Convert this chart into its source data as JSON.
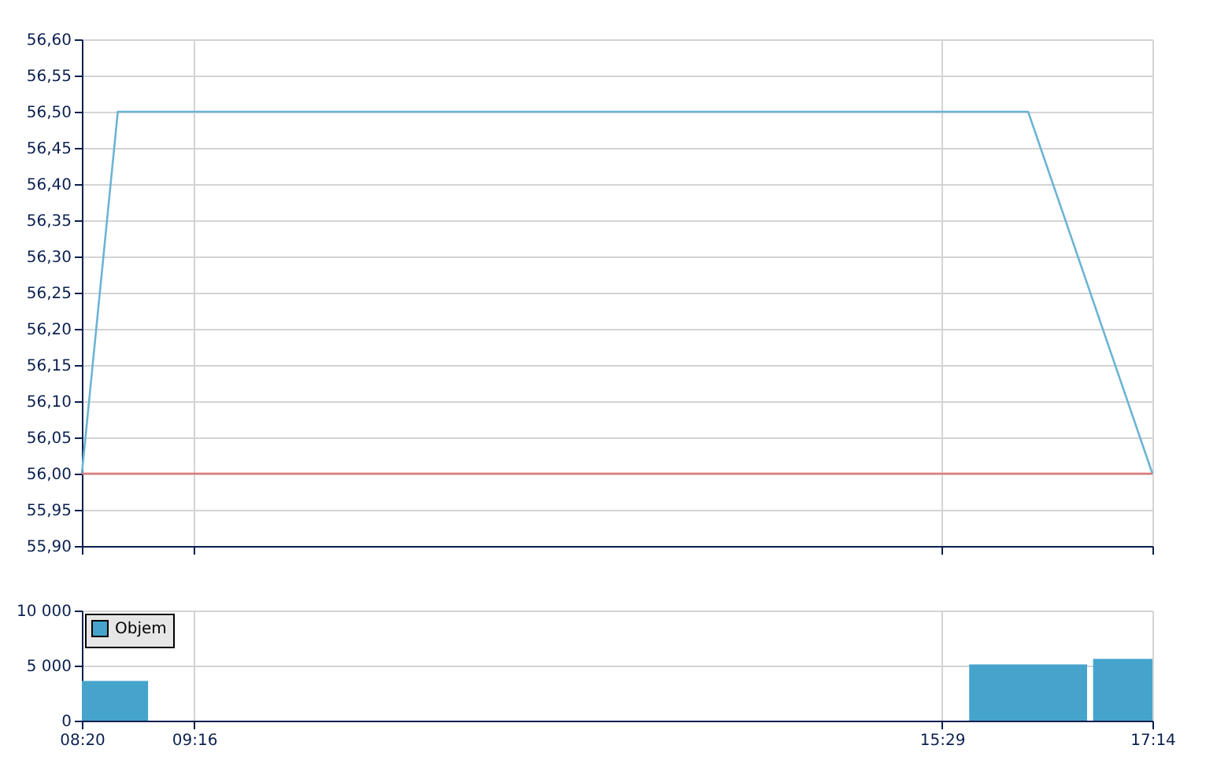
{
  "chart_data": [
    {
      "type": "line",
      "x": [
        8.3333,
        8.632,
        16.2,
        17.2333
      ],
      "series": [
        {
          "color": "#6cb4d4",
          "values": [
            56.0,
            56.5,
            56.5,
            56.0
          ]
        }
      ],
      "xlim": [
        8.3333,
        17.2333
      ],
      "xticks": [
        {
          "value": 8.3333,
          "label": null
        },
        {
          "value": 9.2667,
          "label": null
        },
        {
          "value": 15.4833,
          "label": null
        },
        {
          "value": 17.2333,
          "label": null
        }
      ],
      "ylim": [
        55.9,
        56.6
      ],
      "yticks": [
        {
          "value": 55.9,
          "label": "55,90"
        },
        {
          "value": 55.95,
          "label": "55,95"
        },
        {
          "value": 56.0,
          "label": "56,00"
        },
        {
          "value": 56.05,
          "label": "56,05"
        },
        {
          "value": 56.1,
          "label": "56,10"
        },
        {
          "value": 56.15,
          "label": "56,15"
        },
        {
          "value": 56.2,
          "label": "56,20"
        },
        {
          "value": 56.25,
          "label": "56,25"
        },
        {
          "value": 56.3,
          "label": "56,30"
        },
        {
          "value": 56.35,
          "label": "56,35"
        },
        {
          "value": 56.4,
          "label": "56,40"
        },
        {
          "value": 56.45,
          "label": "56,45"
        },
        {
          "value": 56.5,
          "label": "56,50"
        },
        {
          "value": 56.55,
          "label": "56,55"
        },
        {
          "value": 56.6,
          "label": "56,60"
        }
      ],
      "ref_lines": [
        {
          "axis": "y",
          "value": 56.0,
          "color": "#e07a7a"
        }
      ],
      "grid": true,
      "tick_labels": "y"
    },
    {
      "type": "histogram",
      "bins": [
        8.3333,
        8.884,
        15.71,
        16.69,
        16.74,
        17.2333
      ],
      "series": [
        {
          "name": "Objem",
          "color": "#46a4cc",
          "values": [
            3600,
            null,
            5100,
            null,
            5600
          ]
        }
      ],
      "xlim": [
        8.3333,
        17.2333
      ],
      "xticks": [
        {
          "value": 8.3333,
          "label": "08:20"
        },
        {
          "value": 9.2667,
          "label": "09:16"
        },
        {
          "value": 15.4833,
          "label": "15:29"
        },
        {
          "value": 17.2333,
          "label": "17:14"
        }
      ],
      "ylim": [
        0,
        10000
      ],
      "yticks": [
        0,
        {
          "value": 5000,
          "label": "5 000"
        },
        {
          "value": 10000,
          "label": "10 000"
        }
      ],
      "grid": true,
      "legend": "top left"
    }
  ]
}
